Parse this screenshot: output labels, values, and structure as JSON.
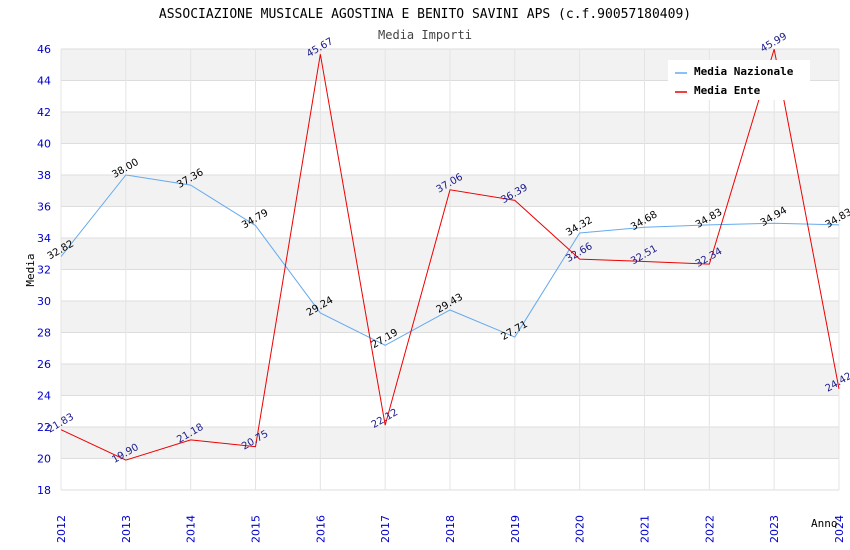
{
  "chart_data": {
    "type": "line",
    "title": "ASSOCIAZIONE MUSICALE AGOSTINA E BENITO SAVINI APS (c.f.90057180409)",
    "subtitle": "Media Importi",
    "xlabel": "Anno",
    "ylabel": "Media",
    "ylim": [
      18,
      46
    ],
    "yticks": [
      "18",
      "20",
      "22",
      "24",
      "26",
      "28",
      "30",
      "32",
      "34",
      "36",
      "38",
      "40",
      "42",
      "44",
      "46"
    ],
    "categories": [
      "2012",
      "2013",
      "2014",
      "2015",
      "2016",
      "2017",
      "2018",
      "2019",
      "2020",
      "2021",
      "2022",
      "2023",
      "2024"
    ],
    "legend_position": "top-right",
    "series": [
      {
        "name": "Media Nazionale",
        "color": "#66aaee",
        "values": [
          32.82,
          38.0,
          37.36,
          34.79,
          29.24,
          27.19,
          29.43,
          27.71,
          34.32,
          34.68,
          34.83,
          34.94,
          34.83
        ],
        "labels": [
          "32.82",
          "38.00",
          "37.36",
          "34.79",
          "29.24",
          "27.19",
          "29.43",
          "27.71",
          "34.32",
          "34.68",
          "34.83",
          "34.94",
          "34.83"
        ]
      },
      {
        "name": "Media Ente",
        "color": "#ee0000",
        "values": [
          21.83,
          19.9,
          21.18,
          20.75,
          45.67,
          22.12,
          37.06,
          36.39,
          32.66,
          32.51,
          32.34,
          45.99,
          24.42
        ],
        "labels": [
          "21.83",
          "19.90",
          "21.18",
          "20.75",
          "45.67",
          "22.12",
          "37.06",
          "36.39",
          "32.66",
          "32.51",
          "32.34",
          "45.99",
          "24.42"
        ]
      }
    ]
  }
}
